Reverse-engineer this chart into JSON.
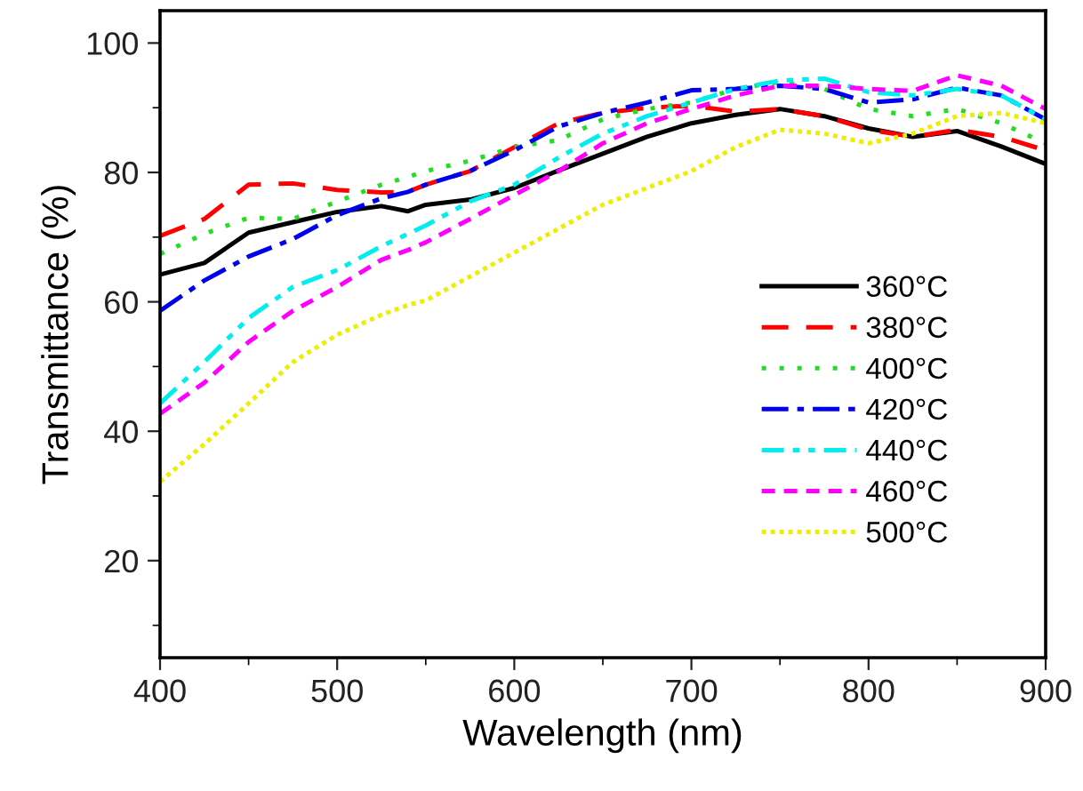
{
  "chart_data": {
    "type": "line",
    "xlabel": "Wavelength (nm)",
    "ylabel": "Transmittance (%)",
    "x": [
      400,
      425,
      450,
      475,
      500,
      525,
      540,
      550,
      575,
      600,
      625,
      650,
      675,
      700,
      725,
      750,
      775,
      800,
      825,
      850,
      875,
      900
    ],
    "xlim": [
      400,
      900
    ],
    "ylim": [
      5,
      105
    ],
    "xticks": [
      400,
      {
        "value": 450,
        "label": null
      },
      500,
      {
        "value": 550,
        "label": null
      },
      600,
      {
        "value": 650,
        "label": null
      },
      700,
      {
        "value": 750,
        "label": null
      },
      800,
      {
        "value": 850,
        "label": null
      },
      900
    ],
    "yticks": [
      {
        "value": 10,
        "label": null
      },
      20,
      {
        "value": 30,
        "label": null
      },
      40,
      {
        "value": 50,
        "label": null
      },
      60,
      {
        "value": 70,
        "label": null
      },
      80,
      {
        "value": 90,
        "label": null
      },
      100
    ],
    "grid": false,
    "legend": "right",
    "marker": "none",
    "series": [
      {
        "name": "360°C",
        "color": "#000000",
        "line_style": "solid",
        "values": [
          64.2,
          66,
          70.7,
          72.3,
          73.9,
          74.8,
          74,
          75,
          75.8,
          77.6,
          80.3,
          82.9,
          85.5,
          87.6,
          88.9,
          89.8,
          88.7,
          86.8,
          85.5,
          86.4,
          84,
          81.3
        ]
      },
      {
        "name": "380°C",
        "color": "#ff0000",
        "line_style": "dashed",
        "values": [
          70.2,
          72.8,
          78.1,
          78.3,
          77.3,
          76.9,
          77,
          78.1,
          80.2,
          83.9,
          87.6,
          89.2,
          90,
          90.3,
          89.4,
          89.8,
          88.7,
          86.6,
          85.5,
          86.6,
          85.5,
          83.4
        ]
      },
      {
        "name": "400°C",
        "color": "#22dd22",
        "line_style": "dotted",
        "values": [
          67.4,
          70.5,
          73,
          72.8,
          75.5,
          78.1,
          79.3,
          80.2,
          81.8,
          83.9,
          85,
          88.2,
          89.8,
          90.8,
          92.9,
          94,
          92.9,
          89.8,
          88.7,
          89.8,
          87.6,
          84.5
        ]
      },
      {
        "name": "420°C",
        "color": "#0000ee",
        "line_style": "dashdot",
        "values": [
          58.6,
          63.3,
          67,
          69.7,
          73.4,
          76,
          77,
          78.1,
          80.2,
          83.4,
          87.1,
          89.2,
          90.8,
          92.7,
          92.9,
          93.4,
          92.9,
          90.8,
          91.3,
          93.1,
          91.9,
          88.2
        ]
      },
      {
        "name": "440°C",
        "color": "#00eeee",
        "line_style": "dashdotdot",
        "values": [
          44.3,
          50.7,
          57.5,
          62.3,
          64.9,
          68.6,
          70.5,
          71.8,
          75.5,
          78.1,
          82.3,
          86,
          88.7,
          90.8,
          92.9,
          94.2,
          94.5,
          92.4,
          91.9,
          92.9,
          91.9,
          88.2
        ]
      },
      {
        "name": "460°C",
        "color": "#ff00ff",
        "line_style": "shortdash",
        "values": [
          42.7,
          47.5,
          53.8,
          58.6,
          62.3,
          66.5,
          68,
          69.2,
          72.8,
          76.5,
          80.2,
          84.5,
          87.6,
          89.8,
          91.9,
          93.4,
          93.4,
          92.9,
          92.6,
          95,
          93.4,
          89.8
        ]
      },
      {
        "name": "500°C",
        "color": "#eeee00",
        "line_style": "finedot",
        "values": [
          32.2,
          38,
          44.3,
          50.7,
          54.9,
          58,
          59.5,
          60.2,
          63.9,
          67.6,
          71.3,
          75,
          77.6,
          80.2,
          83.9,
          86.6,
          86,
          84.5,
          86,
          88.7,
          89.2,
          87.6
        ]
      }
    ]
  }
}
